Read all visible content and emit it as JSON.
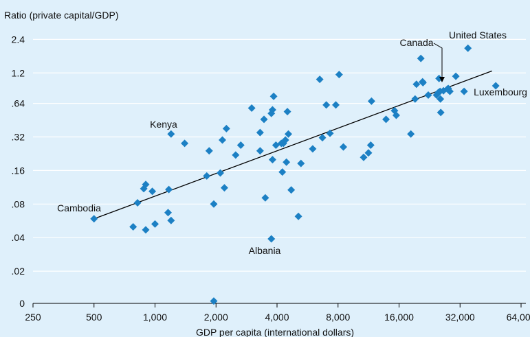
{
  "chart_data": {
    "type": "scatter",
    "ylabel": "Ratio (private capital/GDP)",
    "xlabel": "GDP per capita (international dollars)",
    "x_scale": "log2",
    "x_ticks": [
      250,
      500,
      1000,
      2000,
      4000,
      8000,
      16000,
      32000,
      64000
    ],
    "x_tick_labels": [
      "250",
      "500",
      "1,000",
      "2,000",
      "4,000",
      "8,000",
      "16,000",
      "32,000",
      "64,000"
    ],
    "y_scale": "log2",
    "y_ticks": [
      0,
      0.02,
      0.04,
      0.08,
      0.16,
      0.32,
      0.64,
      1.2,
      2.4
    ],
    "y_tick_labels": [
      "0",
      ".02",
      ".04",
      ".08",
      ".16",
      ".32",
      ".64",
      "1.2",
      "2.4"
    ],
    "xlim": [
      250,
      64000
    ],
    "marker_color": "#1c80c4",
    "points": [
      [
        500,
        0.059
      ],
      [
        780,
        0.05
      ],
      [
        820,
        0.082
      ],
      [
        880,
        0.11
      ],
      [
        900,
        0.12
      ],
      [
        900,
        0.047
      ],
      [
        970,
        0.104
      ],
      [
        1000,
        0.053
      ],
      [
        1160,
        0.067
      ],
      [
        1170,
        0.108
      ],
      [
        1200,
        0.057
      ],
      [
        1200,
        0.34
      ],
      [
        1400,
        0.28
      ],
      [
        1800,
        0.143
      ],
      [
        1850,
        0.24
      ],
      [
        1950,
        0.08
      ],
      [
        1950,
        0.0108
      ],
      [
        2100,
        0.152
      ],
      [
        2150,
        0.3
      ],
      [
        2200,
        0.112
      ],
      [
        2250,
        0.38
      ],
      [
        2500,
        0.22
      ],
      [
        2650,
        0.27
      ],
      [
        3000,
        0.58
      ],
      [
        3300,
        0.35
      ],
      [
        3300,
        0.24
      ],
      [
        3450,
        0.46
      ],
      [
        3500,
        0.091
      ],
      [
        3750,
        0.039
      ],
      [
        3750,
        0.52
      ],
      [
        3800,
        0.56
      ],
      [
        3800,
        0.2
      ],
      [
        3850,
        0.74
      ],
      [
        3950,
        0.27
      ],
      [
        4200,
        0.28
      ],
      [
        4250,
        0.155
      ],
      [
        4300,
        0.28
      ],
      [
        4400,
        0.3
      ],
      [
        4450,
        0.19
      ],
      [
        4500,
        0.54
      ],
      [
        4550,
        0.34
      ],
      [
        4700,
        0.107
      ],
      [
        5100,
        0.062
      ],
      [
        5250,
        0.185
      ],
      [
        6000,
        0.25
      ],
      [
        6500,
        1.05
      ],
      [
        6700,
        0.315
      ],
      [
        7000,
        0.62
      ],
      [
        7300,
        0.345
      ],
      [
        7800,
        0.62
      ],
      [
        8100,
        1.16
      ],
      [
        8500,
        0.26
      ],
      [
        10700,
        0.21
      ],
      [
        11300,
        0.23
      ],
      [
        11600,
        0.27
      ],
      [
        11700,
        0.67
      ],
      [
        13800,
        0.46
      ],
      [
        15200,
        0.55
      ],
      [
        15500,
        0.5
      ],
      [
        18300,
        0.34
      ],
      [
        19200,
        0.7
      ],
      [
        19500,
        0.95
      ],
      [
        20500,
        1.62
      ],
      [
        20900,
        1.0
      ],
      [
        21000,
        0.98
      ],
      [
        22300,
        0.76
      ],
      [
        24500,
        0.76
      ],
      [
        25000,
        0.8
      ],
      [
        25200,
        1.07
      ],
      [
        25500,
        0.82
      ],
      [
        25600,
        0.7
      ],
      [
        25700,
        0.53
      ],
      [
        26500,
        0.83
      ],
      [
        27700,
        0.86
      ],
      [
        28000,
        0.87
      ],
      [
        28500,
        0.82
      ],
      [
        30500,
        1.12
      ],
      [
        33500,
        0.82
      ],
      [
        35000,
        2.0
      ],
      [
        48000,
        0.92
      ]
    ],
    "trend_line": {
      "x": [
        500,
        46000
      ],
      "y": [
        0.059,
        1.25
      ]
    },
    "annotations": [
      "Cambodia",
      "Kenya",
      "Albania",
      "Canada",
      "United States",
      "Luxembourg"
    ]
  }
}
